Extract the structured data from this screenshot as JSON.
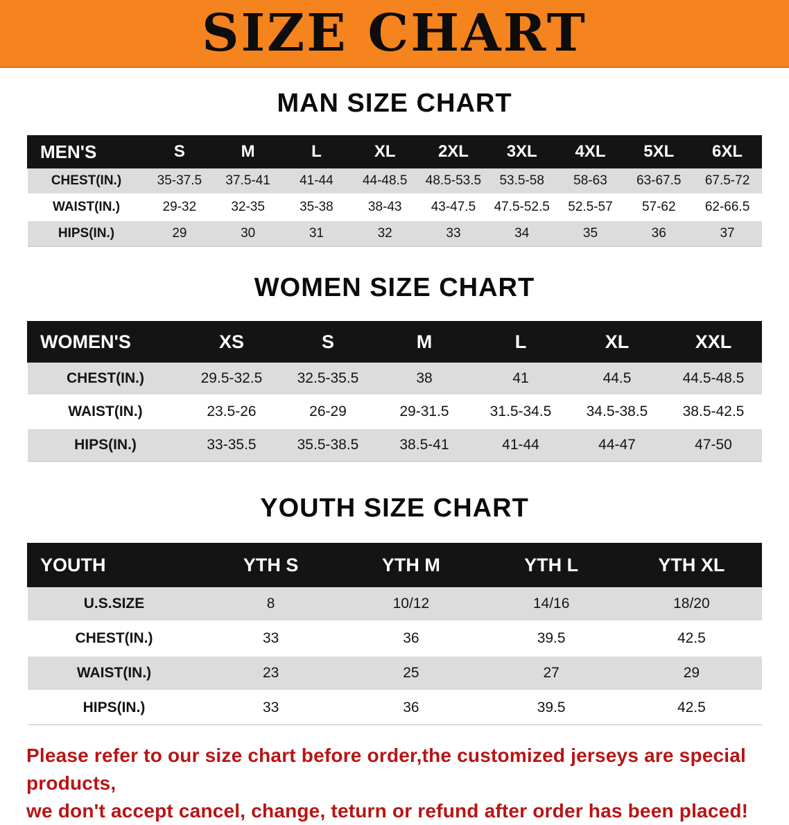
{
  "banner": {
    "title": "SIZE CHART",
    "background_color": "#f5831e",
    "text_color": "#0d0d0d"
  },
  "sections": [
    {
      "heading": "MAN SIZE CHART",
      "table": {
        "header": [
          "MEN'S",
          "S",
          "M",
          "L",
          "XL",
          "2XL",
          "3XL",
          "4XL",
          "5XL",
          "6XL"
        ],
        "rows": [
          [
            "CHEST(IN.)",
            "35-37.5",
            "37.5-41",
            "41-44",
            "44-48.5",
            "48.5-53.5",
            "53.5-58",
            "58-63",
            "63-67.5",
            "67.5-72"
          ],
          [
            "WAIST(IN.)",
            "29-32",
            "32-35",
            "35-38",
            "38-43",
            "43-47.5",
            "47.5-52.5",
            "52.5-57",
            "57-62",
            "62-66.5"
          ],
          [
            "HIPS(IN.)",
            "29",
            "30",
            "31",
            "32",
            "33",
            "34",
            "35",
            "36",
            "37"
          ]
        ]
      }
    },
    {
      "heading": "WOMEN SIZE CHART",
      "table": {
        "header": [
          "WOMEN'S",
          "XS",
          "S",
          "M",
          "L",
          "XL",
          "XXL"
        ],
        "rows": [
          [
            "CHEST(IN.)",
            "29.5-32.5",
            "32.5-35.5",
            "38",
            "41",
            "44.5",
            "44.5-48.5"
          ],
          [
            "WAIST(IN.)",
            "23.5-26",
            "26-29",
            "29-31.5",
            "31.5-34.5",
            "34.5-38.5",
            "38.5-42.5"
          ],
          [
            "HIPS(IN.)",
            "33-35.5",
            "35.5-38.5",
            "38.5-41",
            "41-44",
            "44-47",
            "47-50"
          ]
        ]
      }
    },
    {
      "heading": "YOUTH SIZE CHART",
      "table": {
        "header": [
          "YOUTH",
          "YTH S",
          "YTH M",
          "YTH L",
          "YTH XL"
        ],
        "rows": [
          [
            "U.S.SIZE",
            "8",
            "10/12",
            "14/16",
            "18/20"
          ],
          [
            "CHEST(IN.)",
            "33",
            "36",
            "39.5",
            "42.5"
          ],
          [
            "WAIST(IN.)",
            "23",
            "25",
            "27",
            "29"
          ],
          [
            "HIPS(IN.)",
            "33",
            "36",
            "39.5",
            "42.5"
          ]
        ]
      }
    }
  ],
  "disclaimer": {
    "line1": "Please refer to our size chart before order,the customized jerseys are special products,",
    "line2": "we don't accept cancel, change, teturn or refund after order has been placed!",
    "color": "#b91414"
  }
}
